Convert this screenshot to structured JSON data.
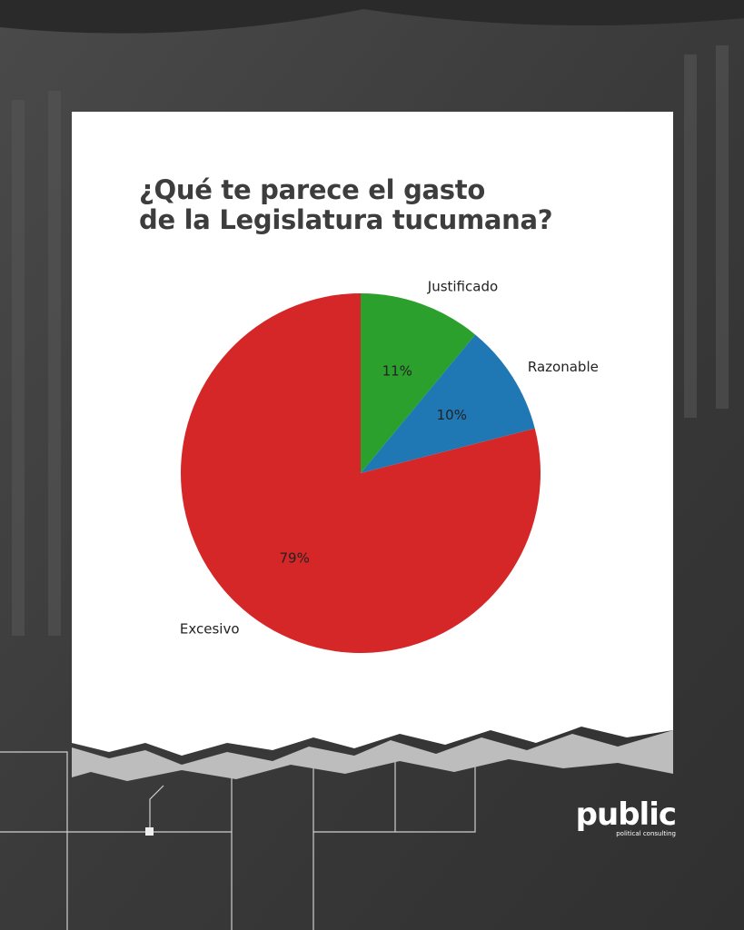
{
  "chart_data": {
    "type": "pie",
    "title": "¿Qué te parece el gasto\nde la Legislatura tucumana?",
    "categories": [
      "Justificado",
      "Razonable",
      "Excesivo"
    ],
    "values": [
      11,
      10,
      79
    ],
    "value_labels": [
      "11%",
      "10%",
      "79%"
    ],
    "colors": [
      "#2ca02c",
      "#1f77b4",
      "#d62728"
    ]
  },
  "brand": {
    "name": "public",
    "tagline": "political consulting"
  }
}
